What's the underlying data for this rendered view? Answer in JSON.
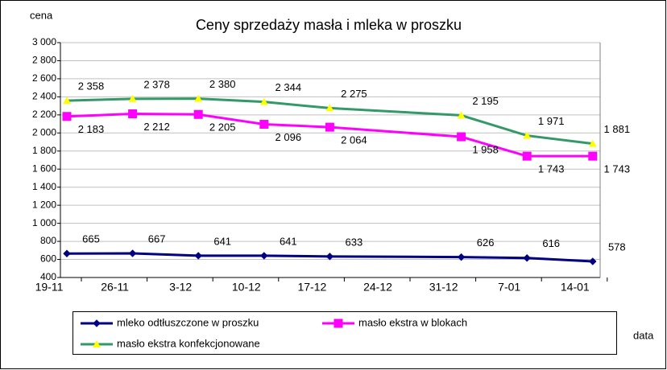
{
  "chart_data": {
    "type": "line",
    "title": "Ceny sprzedaży masła i mleka w proszku",
    "y_label": "cena",
    "x_label": "data",
    "categories": [
      "19-11",
      "26-11",
      "3-12",
      "10-12",
      "17-12",
      "24-12",
      "31-12",
      "7-01",
      "14-01"
    ],
    "ylim": [
      400,
      3000
    ],
    "yticks": [
      400,
      600,
      800,
      {
        "value": 1000,
        "label": "1 000"
      },
      {
        "value": 1200,
        "label": "1 200"
      },
      {
        "value": 1400,
        "label": "1 400"
      },
      {
        "value": 1600,
        "label": "1 600"
      },
      {
        "value": 1800,
        "label": "1 800"
      },
      {
        "value": 2000,
        "label": "2 000"
      },
      {
        "value": 2200,
        "label": "2 200"
      },
      {
        "value": 2400,
        "label": "2 400"
      },
      {
        "value": 2600,
        "label": "2 600"
      },
      {
        "value": 2800,
        "label": "2 800"
      },
      {
        "value": 3000,
        "label": "3 000"
      }
    ],
    "grid": true,
    "connect_gaps": true,
    "series": [
      {
        "name": "mleko odtłuszczone w proszku",
        "color": "#000080",
        "marker": "diamond",
        "marker_color": "#000080",
        "label_side": "above",
        "values": [
          665,
          667,
          641,
          641,
          633,
          null,
          626,
          616,
          578
        ]
      },
      {
        "name": "masło ekstra w blokach",
        "color": "#ff00ff",
        "marker": "square",
        "marker_color": "#ff00ff",
        "label_side": "below",
        "values": [
          2183,
          2212,
          2205,
          2096,
          2064,
          null,
          1958,
          1743,
          1743
        ],
        "value_labels": [
          "2 183",
          "2 212",
          "2 205",
          "2 096",
          "2 064",
          null,
          "1 958",
          "1 743",
          "1 743"
        ]
      },
      {
        "name": "masło ekstra konfekcjonowane",
        "color": "#339966",
        "marker": "triangle",
        "marker_color": "#ffff00",
        "label_side": "above",
        "values": [
          2358,
          2378,
          2380,
          2344,
          2275,
          null,
          2195,
          1971,
          1881
        ],
        "value_labels": [
          "2 358",
          "2 378",
          "2 380",
          "2 344",
          "2 275",
          null,
          "2 195",
          "1 971",
          "1 881"
        ]
      }
    ]
  }
}
